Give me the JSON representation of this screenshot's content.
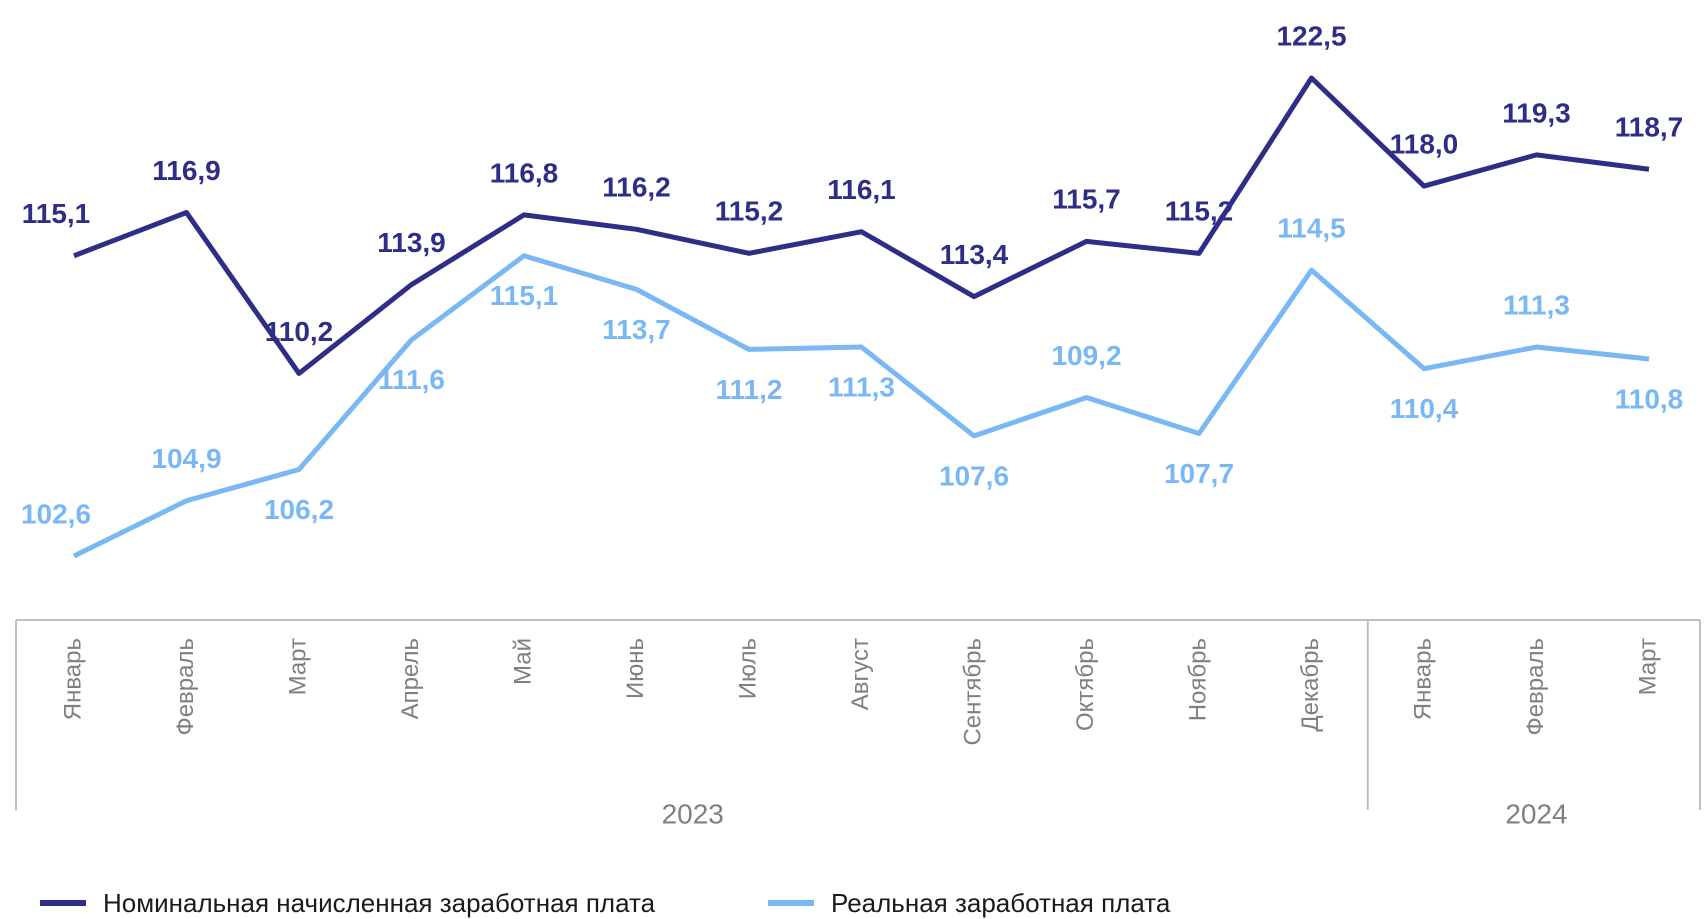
{
  "chart_data": {
    "type": "line",
    "groups": [
      {
        "label": "2023",
        "categories": [
          "Январь",
          "Февраль",
          "Март",
          "Апрель",
          "Май",
          "Июнь",
          "Июль",
          "Август",
          "Сентябрь",
          "Октябрь",
          "Ноябрь",
          "Декабрь"
        ]
      },
      {
        "label": "2024",
        "categories": [
          "Январь",
          "Февраль",
          "Март"
        ]
      }
    ],
    "series": [
      {
        "name": "Номинальная начисленная заработная плата",
        "color": "#2e2d88",
        "values": [
          115.1,
          116.9,
          110.2,
          113.9,
          116.8,
          116.2,
          115.2,
          116.1,
          113.4,
          115.7,
          115.2,
          122.5,
          118.0,
          119.3,
          118.7
        ],
        "value_labels": [
          "115,1",
          "116,9",
          "110,2",
          "113,9",
          "116,8",
          "116,2",
          "115,2",
          "116,1",
          "113,4",
          "115,7",
          "115,2",
          "122,5",
          "118,0",
          "119,3",
          "118,7"
        ]
      },
      {
        "name": "Реальная заработная плата",
        "color": "#7ab8f5",
        "values": [
          102.6,
          104.9,
          106.2,
          111.6,
          115.1,
          113.7,
          111.2,
          111.3,
          107.6,
          109.2,
          107.7,
          114.5,
          110.4,
          111.3,
          110.8
        ],
        "value_labels": [
          "102,6",
          "104,9",
          "106,2",
          "111,6",
          "115,1",
          "113,7",
          "111,2",
          "111,3",
          "107,6",
          "109,2",
          "107,7",
          "114,5",
          "110,4",
          "111,3",
          "110,8"
        ]
      }
    ]
  }
}
